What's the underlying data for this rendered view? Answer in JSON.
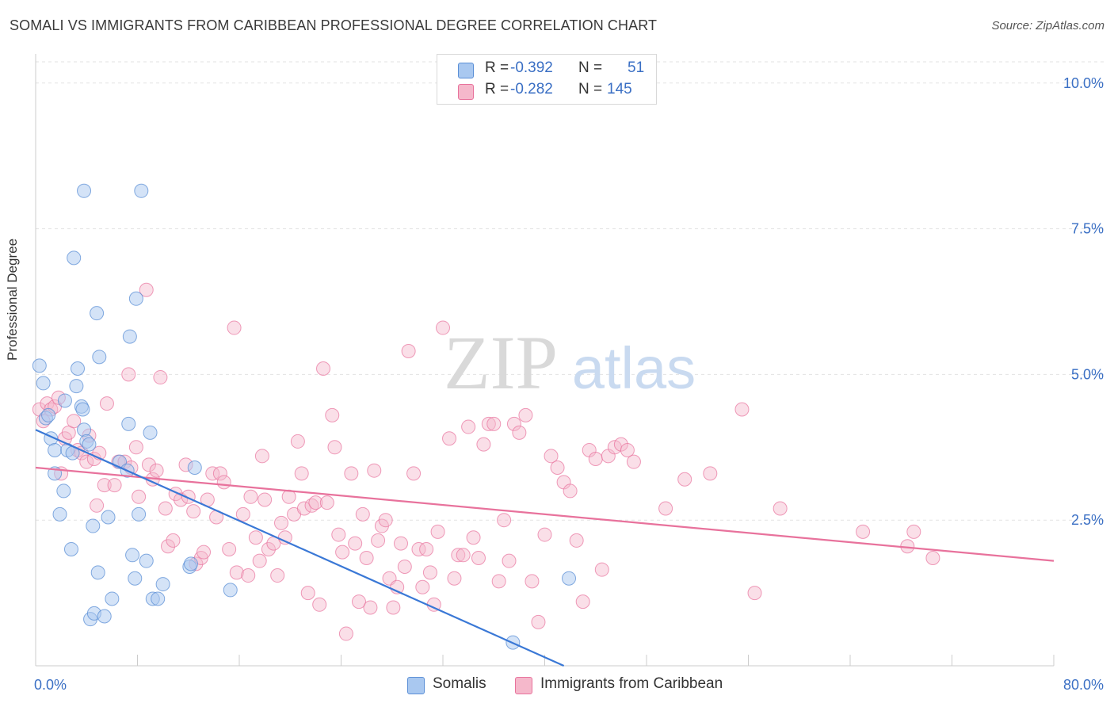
{
  "title": "SOMALI VS IMMIGRANTS FROM CARIBBEAN PROFESSIONAL DEGREE CORRELATION CHART",
  "source": "Source: ZipAtlas.com",
  "watermark": {
    "zip": "ZIP",
    "atlas": "atlas"
  },
  "legend": {
    "rows": [
      {
        "r_label": "R =",
        "r_value": "-0.392",
        "n_label": "N =",
        "n_value": "51",
        "color": "#a9c8f0"
      },
      {
        "r_label": "R =",
        "r_value": "-0.282",
        "n_label": "N =",
        "n_value": "145",
        "color": "#f5b8cb"
      }
    ]
  },
  "bottom_legend": {
    "somalis": "Somalis",
    "caribbean": "Immigrants from Caribbean"
  },
  "colors": {
    "blue": "#5b8fd6",
    "blue_fill": "#a9c8f0",
    "pink": "#e8729c",
    "pink_fill": "#f5b8cb",
    "axis_text": "#3a6fc4"
  },
  "chart_data": {
    "type": "scatter",
    "title": "SOMALI VS IMMIGRANTS FROM CARIBBEAN PROFESSIONAL DEGREE CORRELATION CHART",
    "xlabel": "",
    "ylabel": "Professional Degree",
    "xlim": [
      0,
      80
    ],
    "ylim": [
      0,
      10.5
    ],
    "x_tick_labels": [
      "0.0%",
      "80.0%"
    ],
    "y_tick_labels": [
      "2.5%",
      "5.0%",
      "7.5%",
      "10.0%"
    ],
    "y_ticks": [
      2.5,
      5.0,
      7.5,
      10.0
    ],
    "grid": true,
    "series": [
      {
        "name": "Somalis",
        "color": "#5b8fd6",
        "trend": {
          "x": [
            0,
            41.5
          ],
          "y": [
            4.05,
            0.0
          ]
        },
        "points": [
          [
            0.3,
            5.15
          ],
          [
            0.6,
            4.85
          ],
          [
            0.8,
            4.25
          ],
          [
            1.0,
            4.3
          ],
          [
            1.2,
            3.9
          ],
          [
            1.5,
            3.3
          ],
          [
            1.5,
            3.7
          ],
          [
            1.9,
            2.6
          ],
          [
            2.2,
            3.0
          ],
          [
            2.3,
            4.55
          ],
          [
            2.5,
            3.7
          ],
          [
            2.8,
            2.0
          ],
          [
            3.0,
            7.0
          ],
          [
            3.2,
            4.8
          ],
          [
            3.3,
            5.1
          ],
          [
            3.6,
            4.45
          ],
          [
            3.7,
            4.4
          ],
          [
            3.8,
            4.05
          ],
          [
            4.0,
            3.85
          ],
          [
            4.2,
            3.8
          ],
          [
            3.8,
            8.15
          ],
          [
            4.3,
            0.8
          ],
          [
            4.5,
            2.4
          ],
          [
            4.6,
            0.9
          ],
          [
            4.8,
            6.05
          ],
          [
            4.9,
            1.6
          ],
          [
            5.0,
            5.3
          ],
          [
            5.4,
            0.85
          ],
          [
            5.7,
            2.55
          ],
          [
            6.0,
            1.15
          ],
          [
            6.6,
            3.5
          ],
          [
            7.2,
            3.35
          ],
          [
            7.3,
            4.15
          ],
          [
            7.4,
            5.65
          ],
          [
            7.6,
            1.9
          ],
          [
            7.8,
            1.5
          ],
          [
            7.9,
            6.3
          ],
          [
            8.1,
            2.6
          ],
          [
            8.3,
            8.15
          ],
          [
            8.7,
            1.8
          ],
          [
            9.0,
            4.0
          ],
          [
            9.2,
            1.15
          ],
          [
            9.6,
            1.15
          ],
          [
            10.0,
            1.4
          ],
          [
            12.1,
            1.7
          ],
          [
            12.2,
            1.75
          ],
          [
            12.5,
            3.4
          ],
          [
            15.3,
            1.3
          ],
          [
            37.5,
            0.4
          ],
          [
            41.9,
            1.5
          ],
          [
            2.9,
            3.65
          ]
        ]
      },
      {
        "name": "Immigrants from Caribbean",
        "color": "#e8729c",
        "trend": {
          "x": [
            0,
            80
          ],
          "y": [
            3.4,
            1.8
          ]
        },
        "points": [
          [
            0.3,
            4.4
          ],
          [
            0.6,
            4.2
          ],
          [
            0.9,
            4.5
          ],
          [
            1.2,
            4.4
          ],
          [
            1.5,
            4.45
          ],
          [
            1.8,
            4.6
          ],
          [
            2.0,
            3.3
          ],
          [
            2.3,
            3.9
          ],
          [
            2.6,
            4.0
          ],
          [
            3.0,
            4.2
          ],
          [
            3.3,
            3.7
          ],
          [
            3.6,
            3.65
          ],
          [
            4.0,
            3.5
          ],
          [
            4.2,
            3.95
          ],
          [
            4.6,
            3.55
          ],
          [
            4.8,
            2.75
          ],
          [
            5.0,
            3.65
          ],
          [
            5.4,
            3.1
          ],
          [
            5.6,
            4.5
          ],
          [
            6.2,
            3.1
          ],
          [
            6.5,
            3.5
          ],
          [
            7.0,
            3.5
          ],
          [
            7.3,
            5.0
          ],
          [
            7.5,
            3.4
          ],
          [
            7.9,
            3.75
          ],
          [
            8.1,
            2.9
          ],
          [
            8.7,
            6.45
          ],
          [
            8.9,
            3.45
          ],
          [
            9.2,
            3.2
          ],
          [
            9.5,
            3.35
          ],
          [
            9.8,
            4.95
          ],
          [
            10.2,
            2.7
          ],
          [
            10.4,
            2.05
          ],
          [
            10.8,
            2.15
          ],
          [
            11.0,
            2.95
          ],
          [
            11.4,
            2.85
          ],
          [
            11.8,
            3.45
          ],
          [
            12.0,
            2.9
          ],
          [
            12.4,
            2.65
          ],
          [
            12.6,
            1.75
          ],
          [
            13.0,
            1.85
          ],
          [
            13.2,
            1.95
          ],
          [
            13.5,
            2.85
          ],
          [
            13.9,
            3.3
          ],
          [
            14.2,
            2.55
          ],
          [
            14.5,
            3.3
          ],
          [
            14.8,
            3.15
          ],
          [
            15.2,
            2.0
          ],
          [
            15.6,
            5.8
          ],
          [
            15.8,
            1.6
          ],
          [
            16.3,
            2.6
          ],
          [
            16.7,
            1.55
          ],
          [
            16.9,
            2.9
          ],
          [
            17.3,
            2.2
          ],
          [
            17.6,
            1.8
          ],
          [
            17.8,
            3.6
          ],
          [
            18.0,
            2.85
          ],
          [
            18.3,
            2.0
          ],
          [
            18.7,
            2.1
          ],
          [
            19.0,
            1.55
          ],
          [
            19.3,
            2.45
          ],
          [
            19.6,
            2.2
          ],
          [
            19.9,
            2.9
          ],
          [
            20.3,
            2.6
          ],
          [
            20.6,
            3.85
          ],
          [
            20.9,
            3.3
          ],
          [
            21.1,
            2.7
          ],
          [
            21.4,
            1.25
          ],
          [
            21.7,
            2.75
          ],
          [
            22.0,
            2.8
          ],
          [
            22.3,
            1.05
          ],
          [
            22.6,
            5.1
          ],
          [
            22.9,
            2.8
          ],
          [
            23.3,
            4.3
          ],
          [
            23.5,
            3.75
          ],
          [
            23.8,
            2.25
          ],
          [
            24.1,
            1.95
          ],
          [
            24.4,
            0.55
          ],
          [
            24.8,
            3.3
          ],
          [
            25.1,
            2.1
          ],
          [
            25.4,
            1.1
          ],
          [
            25.7,
            2.6
          ],
          [
            26.0,
            1.85
          ],
          [
            26.3,
            1.0
          ],
          [
            26.6,
            3.35
          ],
          [
            26.9,
            2.15
          ],
          [
            27.2,
            2.4
          ],
          [
            27.5,
            2.5
          ],
          [
            27.8,
            1.5
          ],
          [
            28.1,
            1.0
          ],
          [
            28.4,
            1.35
          ],
          [
            28.7,
            2.1
          ],
          [
            29.0,
            1.7
          ],
          [
            29.3,
            5.4
          ],
          [
            29.7,
            3.3
          ],
          [
            30.1,
            2.0
          ],
          [
            30.4,
            1.35
          ],
          [
            30.7,
            2.0
          ],
          [
            31.0,
            1.6
          ],
          [
            31.3,
            1.05
          ],
          [
            31.6,
            2.3
          ],
          [
            32.0,
            5.8
          ],
          [
            32.5,
            3.9
          ],
          [
            32.9,
            1.5
          ],
          [
            33.2,
            1.9
          ],
          [
            33.6,
            1.9
          ],
          [
            34.0,
            4.1
          ],
          [
            34.4,
            2.2
          ],
          [
            34.8,
            1.85
          ],
          [
            35.2,
            3.8
          ],
          [
            35.6,
            4.15
          ],
          [
            36.0,
            4.15
          ],
          [
            36.4,
            1.45
          ],
          [
            36.8,
            2.5
          ],
          [
            37.2,
            1.8
          ],
          [
            37.6,
            4.15
          ],
          [
            38.0,
            4.0
          ],
          [
            38.5,
            4.3
          ],
          [
            39.0,
            1.45
          ],
          [
            39.5,
            0.75
          ],
          [
            40.0,
            2.25
          ],
          [
            40.5,
            3.6
          ],
          [
            41.0,
            3.4
          ],
          [
            41.5,
            3.15
          ],
          [
            42.0,
            3.0
          ],
          [
            42.5,
            2.15
          ],
          [
            43.0,
            1.1
          ],
          [
            43.5,
            3.7
          ],
          [
            44.0,
            3.55
          ],
          [
            44.5,
            1.65
          ],
          [
            45.0,
            3.6
          ],
          [
            45.5,
            3.75
          ],
          [
            46.0,
            3.8
          ],
          [
            46.5,
            3.7
          ],
          [
            47.0,
            3.5
          ],
          [
            49.5,
            2.7
          ],
          [
            51.0,
            3.2
          ],
          [
            53.0,
            3.3
          ],
          [
            55.5,
            4.4
          ],
          [
            56.5,
            1.25
          ],
          [
            58.5,
            2.7
          ],
          [
            65.0,
            2.3
          ],
          [
            68.5,
            2.05
          ],
          [
            69.0,
            2.3
          ],
          [
            70.5,
            1.85
          ]
        ]
      }
    ]
  }
}
